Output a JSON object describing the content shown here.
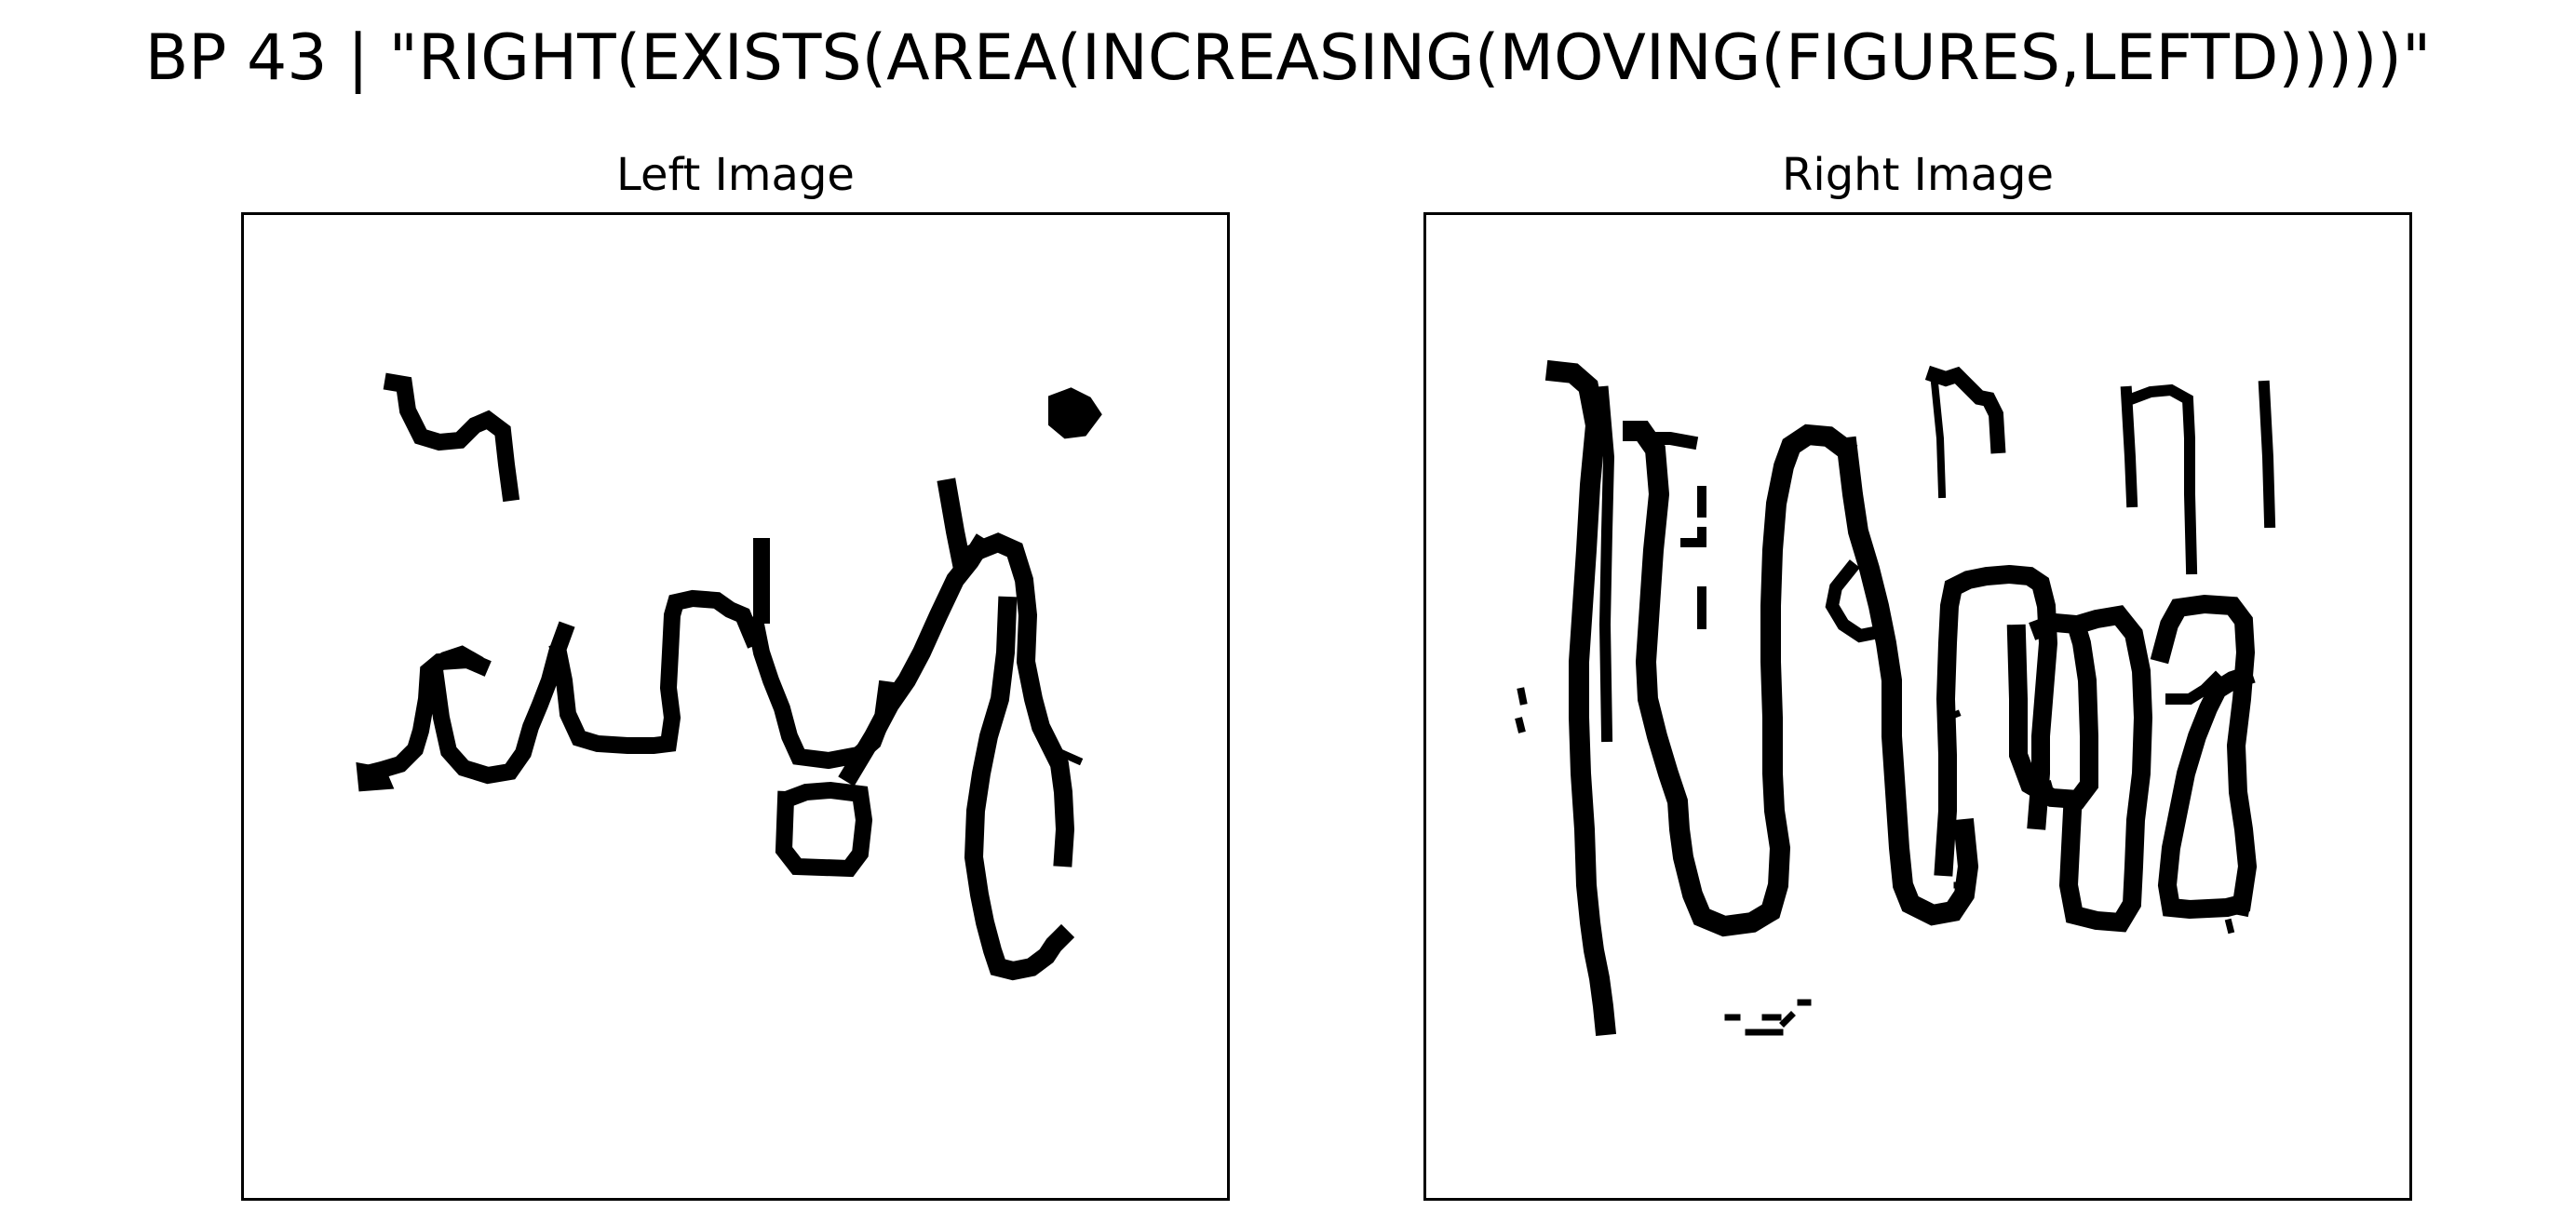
{
  "figure": {
    "title": "BP 43 | \"RIGHT(EXISTS(AREA(INCREASING(MOVING(FIGURES,LEFTD)))))\""
  },
  "panels": {
    "left": {
      "title": "Left Image",
      "content": "scribble-drawing"
    },
    "right": {
      "title": "Right Image",
      "content": "scribble-drawing"
    }
  },
  "colors": {
    "ink": "#000000",
    "background": "#ffffff"
  }
}
